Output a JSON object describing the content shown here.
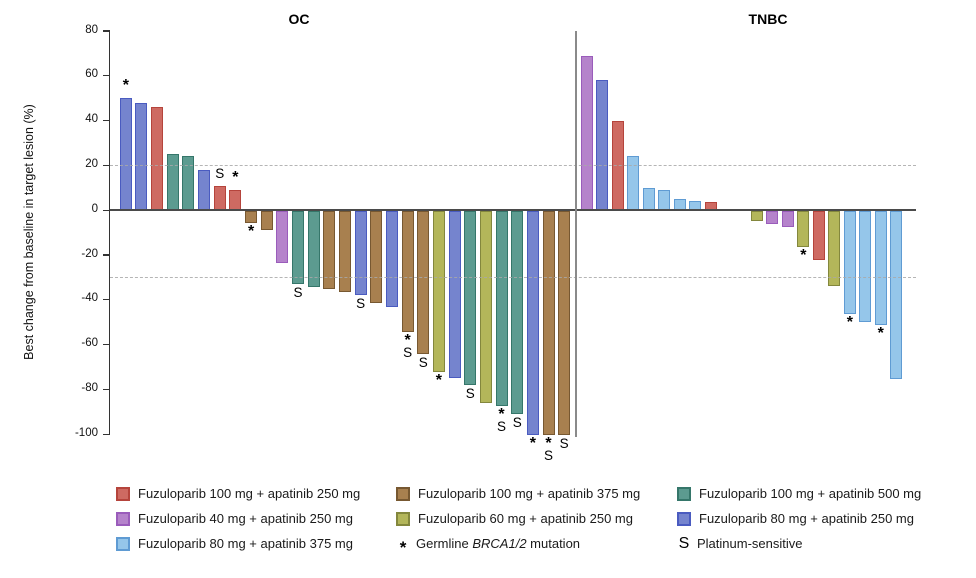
{
  "chart_data": {
    "type": "bar",
    "title": "",
    "ylabel": "Best change from baseline in target lesion (%)",
    "ylim": [
      -100,
      80
    ],
    "yticks": [
      80,
      60,
      40,
      20,
      0,
      -20,
      -40,
      -60,
      -80,
      -100
    ],
    "reference_lines_y": [
      20,
      -30
    ],
    "legend_position": "bottom",
    "annotation_symbols": {
      "star": "*",
      "s": "S"
    },
    "colors": {
      "F100A250": {
        "fill": "#ce6a62",
        "border": "#b5443c"
      },
      "F100A375": {
        "fill": "#a8804f",
        "border": "#775831"
      },
      "F100A500": {
        "fill": "#5c9b90",
        "border": "#35766a"
      },
      "F40A250": {
        "fill": "#b583cb",
        "border": "#9a5cbb"
      },
      "F60A250": {
        "fill": "#b3b65a",
        "border": "#83873d"
      },
      "F80A250": {
        "fill": "#7584ce",
        "border": "#4a5bc0"
      },
      "F80A375": {
        "fill": "#95c6ea",
        "border": "#5f9bd3"
      }
    },
    "panels": [
      {
        "title": "OC",
        "bars": [
          {
            "t": "F80A250",
            "v": 50,
            "a": "*"
          },
          {
            "t": "F80A250",
            "v": 48
          },
          {
            "t": "F100A250",
            "v": 46
          },
          {
            "t": "F100A500",
            "v": 25
          },
          {
            "t": "F100A500",
            "v": 24
          },
          {
            "t": "F80A250",
            "v": 18
          },
          {
            "t": "F100A250",
            "v": 11,
            "a": "S"
          },
          {
            "t": "F100A250",
            "v": 9,
            "a": "*"
          },
          {
            "t": "F100A375",
            "v": -5.5,
            "a": "*"
          },
          {
            "t": "F100A375",
            "v": -8.5
          },
          {
            "t": "F40A250",
            "v": -23
          },
          {
            "t": "F100A500",
            "v": -32.5,
            "a": "S"
          },
          {
            "t": "F100A500",
            "v": -34
          },
          {
            "t": "F100A375",
            "v": -35
          },
          {
            "t": "F100A375",
            "v": -36
          },
          {
            "t": "F80A250",
            "v": -37.5,
            "a": "S"
          },
          {
            "t": "F100A375",
            "v": -41
          },
          {
            "t": "F80A250",
            "v": -43
          },
          {
            "t": "F100A375",
            "v": -54,
            "a": "*S"
          },
          {
            "t": "F100A375",
            "v": -64,
            "a": "S"
          },
          {
            "t": "F60A250",
            "v": -72,
            "a": "*"
          },
          {
            "t": "F80A250",
            "v": -74.5
          },
          {
            "t": "F100A500",
            "v": -77.5,
            "a": "S"
          },
          {
            "t": "F60A250",
            "v": -85.5
          },
          {
            "t": "F100A500",
            "v": -87,
            "a": "*S"
          },
          {
            "t": "F100A500",
            "v": -90.5,
            "a": "S"
          },
          {
            "t": "F80A250",
            "v": -100,
            "a": "*"
          },
          {
            "t": "F100A375",
            "v": -100,
            "a": "*S"
          },
          {
            "t": "F100A375",
            "v": -100,
            "a": "S"
          }
        ]
      },
      {
        "title": "TNBC",
        "bars": [
          {
            "t": "F40A250",
            "v": 69
          },
          {
            "t": "F80A250",
            "v": 58
          },
          {
            "t": "F100A250",
            "v": 40
          },
          {
            "t": "F80A375",
            "v": 24
          },
          {
            "t": "F80A375",
            "v": 10
          },
          {
            "t": "F80A375",
            "v": 9
          },
          {
            "t": "F80A375",
            "v": 5
          },
          {
            "t": "F80A375",
            "v": 4
          },
          {
            "t": "F100A250",
            "v": 3.5
          },
          {
            "spacer": true
          },
          {
            "spacer": true
          },
          {
            "t": "F60A250",
            "v": -4.5
          },
          {
            "t": "F40A250",
            "v": -6
          },
          {
            "t": "F40A250",
            "v": -7
          },
          {
            "t": "F60A250",
            "v": -16,
            "a": "*"
          },
          {
            "t": "F100A250",
            "v": -22
          },
          {
            "t": "F60A250",
            "v": -33.5
          },
          {
            "t": "F80A375",
            "v": -46,
            "a": "*"
          },
          {
            "t": "F80A375",
            "v": -49.5
          },
          {
            "t": "F80A375",
            "v": -51,
            "a": "*"
          },
          {
            "t": "F80A375",
            "v": -75
          }
        ]
      }
    ]
  },
  "legend": {
    "items": [
      {
        "key": "F100A250",
        "label": "Fuzuloparib 100 mg + apatinib 250 mg"
      },
      {
        "key": "F40A250",
        "label": "Fuzuloparib 40 mg + apatinib 250 mg"
      },
      {
        "key": "F80A375",
        "label": "Fuzuloparib 80 mg + apatinib 375 mg"
      },
      {
        "key": "F100A375",
        "label": "Fuzuloparib 100 mg + apatinib 375 mg"
      },
      {
        "key": "F60A250",
        "label": "Fuzuloparib 60 mg + apatinib 250 mg"
      },
      {
        "symbol": "*",
        "prefix": "Germline ",
        "italic": "BRCA1/2",
        "suffix": " mutation"
      },
      {
        "key": "F100A500",
        "label": "Fuzuloparib 100 mg + apatinib 500 mg"
      },
      {
        "key": "F80A250",
        "label": "Fuzuloparib 80 mg + apatinib 250 mg"
      },
      {
        "symbol": "S",
        "label": "Platinum-sensitive"
      }
    ]
  }
}
